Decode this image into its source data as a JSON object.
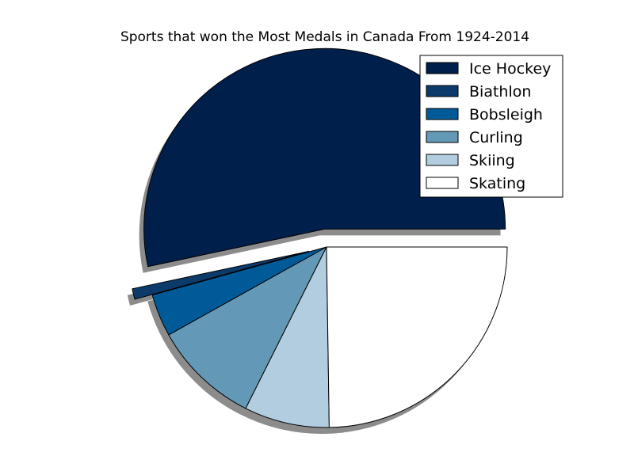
{
  "chart_data": {
    "type": "pie",
    "title": "Sports that won the Most Medals in Canada From 1924-2014",
    "slices": [
      {
        "label": "Ice Hockey",
        "value": 28,
        "color": "#001f4b",
        "exploded": true
      },
      {
        "label": "Biathlon",
        "value": 0.5,
        "color": "#0c3a6b",
        "exploded": true
      },
      {
        "label": "Bobsleigh",
        "value": 2,
        "color": "#005a98",
        "exploded": false
      },
      {
        "label": "Curling",
        "value": 5,
        "color": "#6399b6",
        "exploded": false
      },
      {
        "label": "Skiing",
        "value": 4,
        "color": "#b2cde0",
        "exploded": false
      },
      {
        "label": "Skating",
        "value": 13,
        "color": "#ffffff",
        "exploded": false
      }
    ],
    "shadow": true,
    "start_angle_deg": 0,
    "direction": "counterclockwise",
    "legend": {
      "placement": "top-right"
    }
  }
}
